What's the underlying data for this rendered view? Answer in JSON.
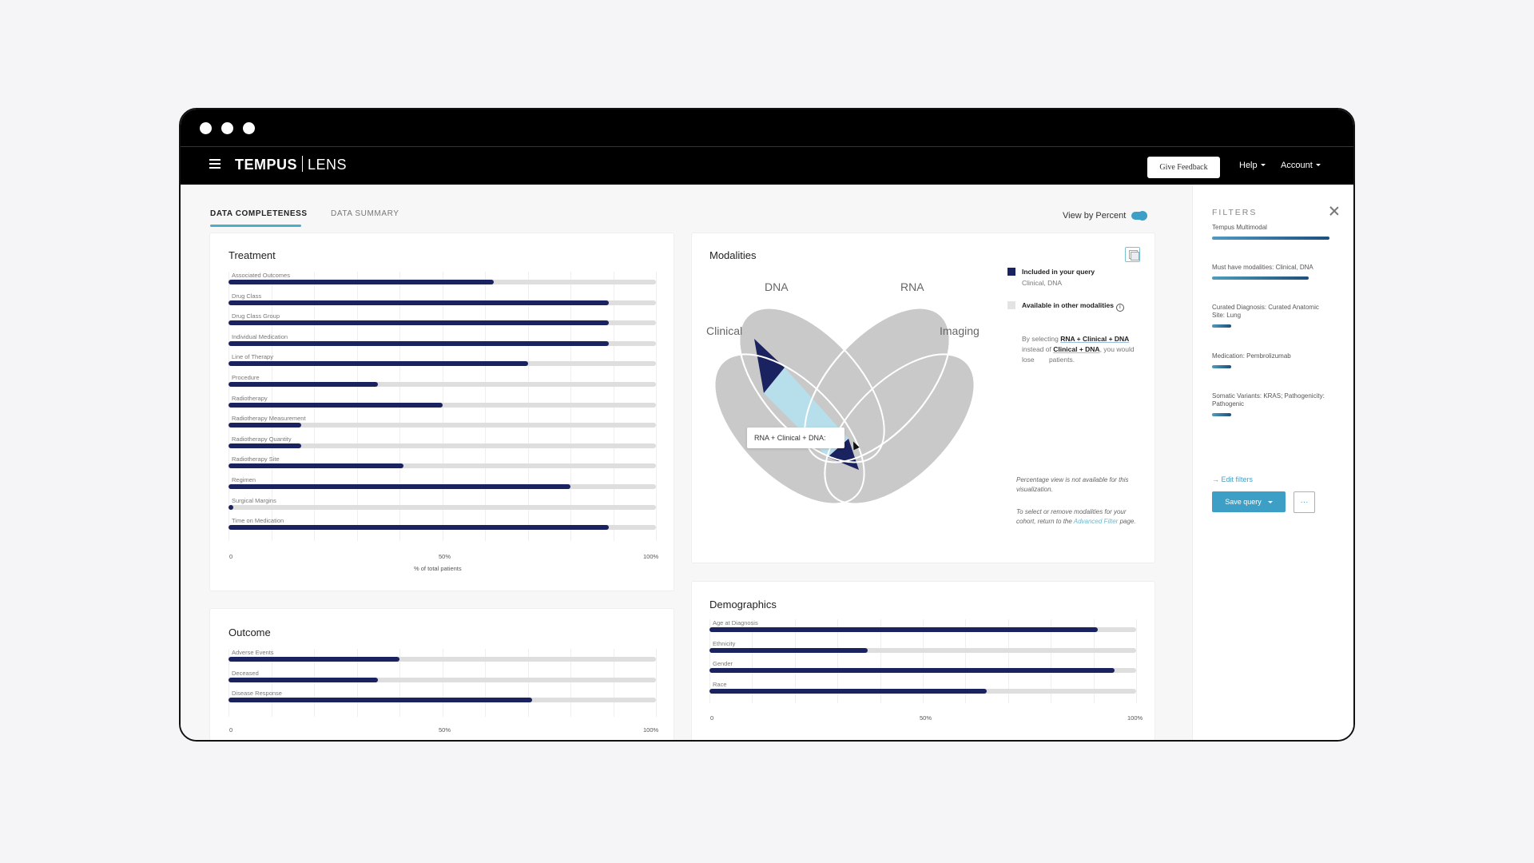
{
  "window": {
    "traffic_lights": 3
  },
  "navbar": {
    "brand": "TEMPUS",
    "product": "LENS",
    "feedback_label": "Give Feedback",
    "help_label": "Help",
    "account_label": "Account"
  },
  "tabs": [
    {
      "label": "DATA COMPLETENESS",
      "active": true
    },
    {
      "label": "DATA SUMMARY",
      "active": false
    }
  ],
  "view_by_percent": {
    "label": "View by Percent",
    "enabled": true,
    "color": "#3d9fc6"
  },
  "colors": {
    "bar_fill": "#1b2260",
    "bar_track": "#dedede",
    "accent": "#3d9fc6",
    "venn_gray": "#c9c9c9",
    "venn_selected_dark": "#1b2260",
    "venn_highlight_light": "#b7dfeb"
  },
  "treatment": {
    "title": "Treatment",
    "axis": {
      "ticks": [
        "0",
        "50%",
        "100%"
      ],
      "label": "% of total patients"
    }
  },
  "outcome": {
    "title": "Outcome",
    "axis": {
      "ticks": [
        "0",
        "50%",
        "100%"
      ]
    }
  },
  "demographics": {
    "title": "Demographics",
    "axis": {
      "ticks": [
        "0",
        "50%",
        "100%"
      ]
    }
  },
  "modalities": {
    "title": "Modalities",
    "venn_labels": {
      "clinical": "Clinical",
      "dna": "DNA",
      "rna": "RNA",
      "imaging": "Imaging"
    },
    "tooltip": "RNA + Clinical + DNA:",
    "legend": {
      "included_title": "Included in your query",
      "included_sub": "Clinical, DNA",
      "available_title": "Available in other modalities"
    },
    "select_note": {
      "prefix": "By selecting ",
      "selected": "RNA + Clinical + DNA",
      "middle": " instead of ",
      "current": "Clinical + DNA",
      "suffix": ", you would lose",
      "end": " patients."
    },
    "note1": "Percentage view is not available for this visualization.",
    "note2_prefix": "To select or remove modalities for your cohort, return to the ",
    "note2_link": "Advanced Filter",
    "note2_suffix": " page."
  },
  "filters": {
    "title": "FILTERS",
    "items": [
      {
        "label": "Tempus Multimodal",
        "bar_pct": 100
      },
      {
        "label": "Must have modalities: Clinical, DNA",
        "bar_pct": 82
      },
      {
        "label": "Curated Diagnosis: Curated Anatomic Site: Lung",
        "bar_pct": 16
      },
      {
        "label": "Medication: Pembrolizumab",
        "bar_pct": 16
      },
      {
        "label": "Somatic Variants: KRAS; Pathogenicity: Pathogenic",
        "bar_pct": 16
      }
    ],
    "edit_label": "Edit filters",
    "save_label": "Save query",
    "more_label": "···"
  },
  "chart_data": [
    {
      "type": "bar",
      "title": "Treatment",
      "orientation": "horizontal",
      "categories": [
        "Associated Outcomes",
        "Drug Class",
        "Drug Class Group",
        "Individual Medication",
        "Line of Therapy",
        "Procedure",
        "Radiotherapy",
        "Radiotherapy Measurement",
        "Radiotherapy Quantity",
        "Radiotherapy Site",
        "Regimen",
        "Surgical Margins",
        "Time on Medication"
      ],
      "values": [
        62,
        89,
        89,
        89,
        70,
        35,
        50,
        17,
        17,
        41,
        80,
        1,
        89
      ],
      "xlabel": "% of total patients",
      "xlim": [
        0,
        100
      ],
      "xticks": [
        "0",
        "50%",
        "100%"
      ],
      "grid": true
    },
    {
      "type": "bar",
      "title": "Outcome",
      "orientation": "horizontal",
      "categories": [
        "Adverse Events",
        "Deceased",
        "Disease Response"
      ],
      "values": [
        40,
        35,
        71
      ],
      "xlim": [
        0,
        100
      ],
      "xticks": [
        "0",
        "50%",
        "100%"
      ],
      "grid": true
    },
    {
      "type": "bar",
      "title": "Demographics",
      "orientation": "horizontal",
      "categories": [
        "Age at Diagnosis",
        "Ethnicity",
        "Gender",
        "Race"
      ],
      "values": [
        91,
        37,
        95,
        65
      ],
      "xlim": [
        0,
        100
      ],
      "xticks": [
        "0",
        "50%",
        "100%"
      ],
      "grid": true
    }
  ]
}
